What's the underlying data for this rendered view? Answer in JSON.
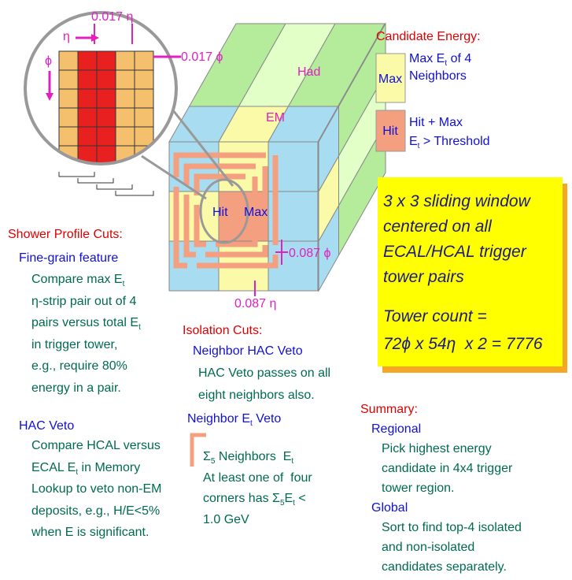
{
  "zoom": {
    "eta_size": "0.017 η",
    "eta": "η",
    "phi": "ϕ",
    "phi_size": "0.017 ϕ"
  },
  "cube": {
    "had": "Had",
    "em": "EM",
    "hit": "Hit",
    "max": "Max",
    "phi_size": "0.087 ϕ",
    "eta_size": "0.087 η"
  },
  "legend": {
    "title": "Candidate Energy:",
    "items": [
      {
        "box": "Max",
        "lines": [
          [
            "Max E",
            "t",
            " of 4"
          ],
          "Neighbors"
        ]
      },
      {
        "box": "Hit",
        "lines": [
          "Hit + Max",
          [
            "E",
            "t",
            " > Threshold"
          ]
        ]
      }
    ]
  },
  "callout": [
    "3 x 3 sliding window",
    "centered on all",
    "ECAL/HCAL trigger",
    "tower pairs",
    "Tower count =",
    "72ϕ x 54η  x 2 = 7776"
  ],
  "shower": {
    "title": "Shower Profile Cuts:",
    "fine_grain": {
      "heading": "Fine-grain feature",
      "lines": [
        [
          "Compare max E",
          "t"
        ],
        "η-strip pair out of 4",
        [
          "pairs versus total E",
          "t"
        ],
        "in trigger tower,",
        "e.g., require 80%",
        "energy in a pair."
      ]
    },
    "hac": {
      "heading": "HAC Veto",
      "lines": [
        "Compare HCAL versus",
        [
          "ECAL E",
          "t",
          " in Memory"
        ],
        "Lookup to veto non-EM",
        "deposits, e.g., H/E<5%",
        "when E is significant."
      ]
    }
  },
  "isolation": {
    "title": "Isolation Cuts:",
    "hac": {
      "heading": "Neighbor HAC Veto",
      "lines": [
        "HAC Veto passes on all",
        "eight neighbors also."
      ]
    },
    "et": {
      "heading": [
        "Neighbor E",
        "t",
        " Veto"
      ],
      "lines": [
        [
          "Σ",
          "5",
          " Neighbors  E",
          "t"
        ],
        "At least one of  four",
        [
          "corners has Σ",
          "5",
          "E",
          "t",
          " <"
        ],
        "1.0 GeV"
      ]
    }
  },
  "summary": {
    "title": "Summary:",
    "regional": {
      "heading": "Regional",
      "lines": [
        "Pick highest energy",
        "candidate in 4x4 trigger",
        "tower region."
      ]
    },
    "global": {
      "heading": "Global",
      "lines": [
        "Sort to find top-4 isolated",
        "and non-isolated",
        "candidates separately."
      ]
    }
  }
}
